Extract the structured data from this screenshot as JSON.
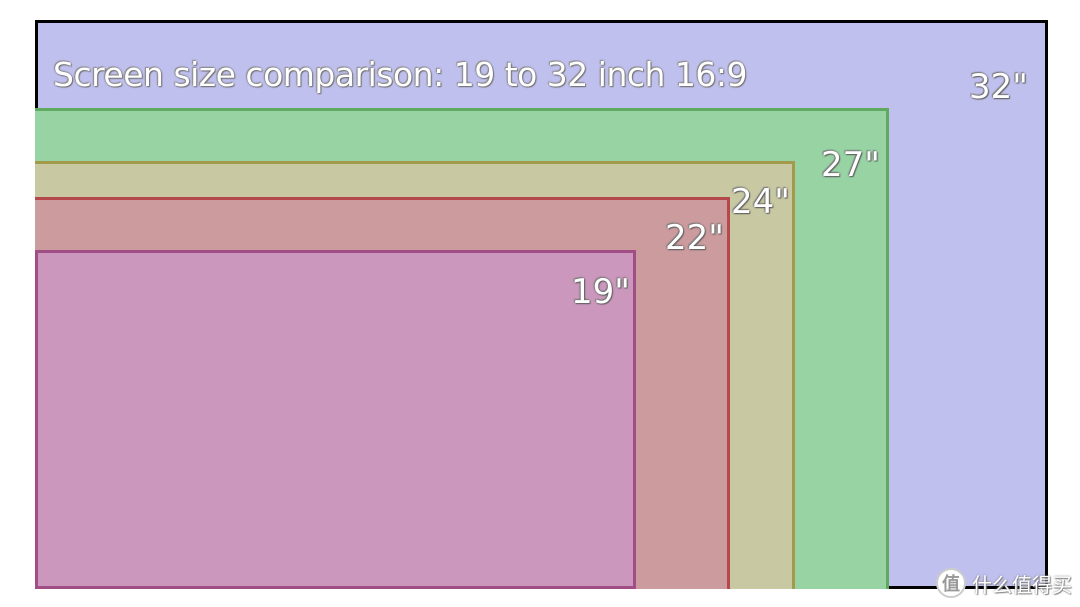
{
  "title": "Screen size comparison: 19 to 32 inch 16:9",
  "screens": [
    {
      "label": "32\"",
      "inches": 32,
      "fill": "#c0c0ee",
      "border": "#000000"
    },
    {
      "label": "27\"",
      "inches": 27,
      "fill": "#98d3a4",
      "border": "#5faa5f"
    },
    {
      "label": "24\"",
      "inches": 24,
      "fill": "#c8c8a2",
      "border": "#a39a4c"
    },
    {
      "label": "22\"",
      "inches": 22,
      "fill": "#cc9b9e",
      "border": "#b4484a"
    },
    {
      "label": "19\"",
      "inches": 19,
      "fill": "#cb97bc",
      "border": "#a24e86"
    }
  ],
  "watermark": {
    "logo_glyph": "值",
    "text": "什么值得买"
  }
}
